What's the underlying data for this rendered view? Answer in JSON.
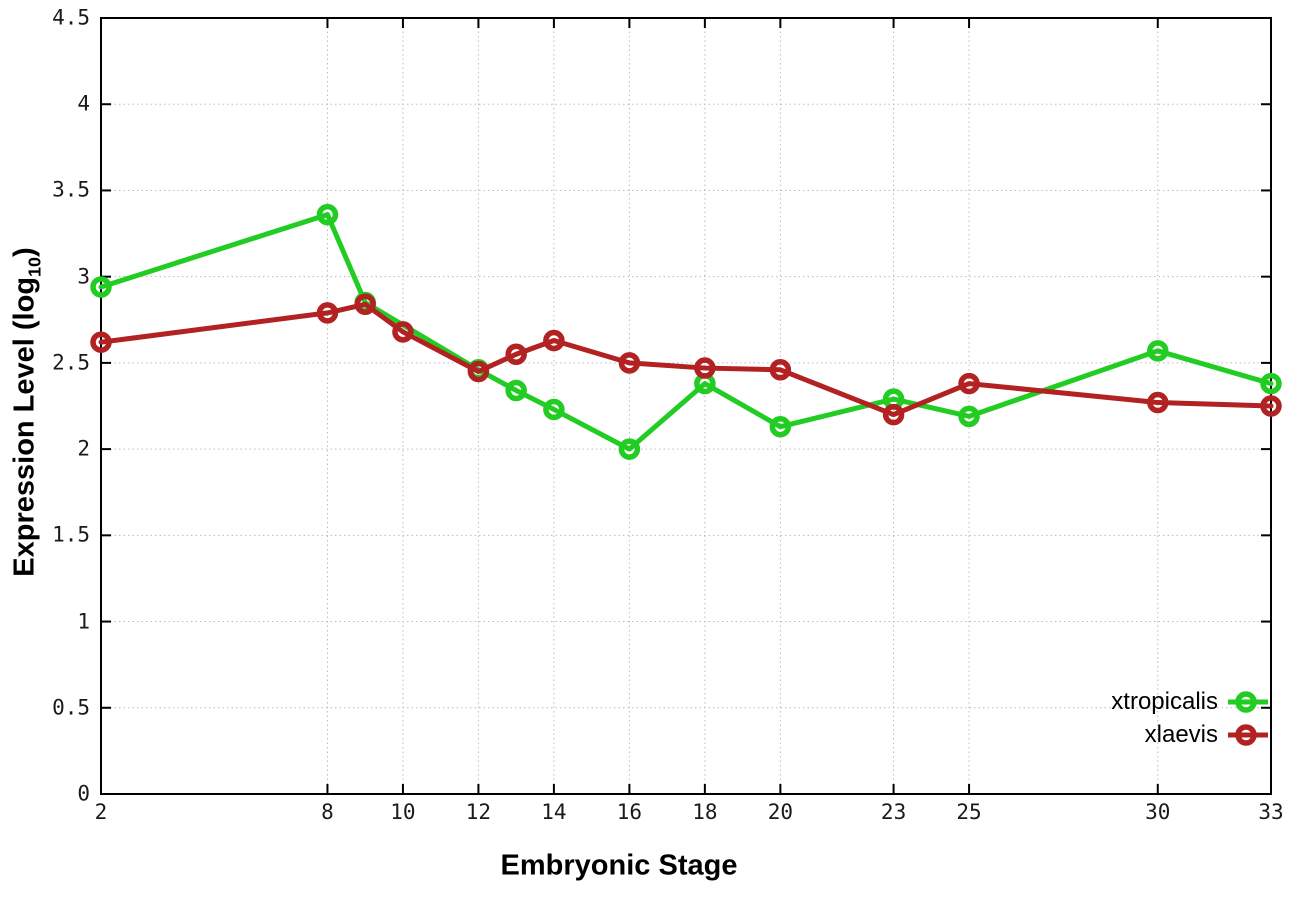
{
  "chart_data": {
    "type": "line",
    "title": "",
    "xlabel": "Embryonic Stage",
    "ylabel": {
      "prefix": "Expression Level (log",
      "subscript": "10",
      "suffix": ")"
    },
    "xlim": [
      2,
      33
    ],
    "ylim": [
      0,
      4.5
    ],
    "xticks": [
      2,
      8,
      10,
      12,
      14,
      16,
      18,
      20,
      23,
      25,
      30,
      33
    ],
    "xtick_labels": [
      "2",
      "8",
      "10",
      "12",
      "14",
      "16",
      "18",
      "20",
      "23",
      "25",
      "30",
      "33"
    ],
    "yticks": [
      0,
      0.5,
      1,
      1.5,
      2,
      2.5,
      3,
      3.5,
      4,
      4.5
    ],
    "ytick_labels": [
      "0",
      "0.5",
      "1",
      "1.5",
      "2",
      "2.5",
      "3",
      "3.5",
      "4",
      "4.5"
    ],
    "grid": true,
    "legend_position": "bottom-right",
    "marker": "open-circle",
    "series": [
      {
        "name": "xtropicalis",
        "color": "#22cc22",
        "points": [
          [
            2,
            2.94
          ],
          [
            8,
            3.36
          ],
          [
            9,
            2.85
          ],
          [
            12,
            2.46
          ],
          [
            13,
            2.34
          ],
          [
            14,
            2.23
          ],
          [
            16,
            2.0
          ],
          [
            18,
            2.38
          ],
          [
            20,
            2.13
          ],
          [
            23,
            2.29
          ],
          [
            25,
            2.19
          ],
          [
            30,
            2.57
          ],
          [
            33,
            2.38
          ]
        ]
      },
      {
        "name": "xlaevis",
        "color": "#b22222",
        "points": [
          [
            2,
            2.62
          ],
          [
            8,
            2.79
          ],
          [
            9,
            2.84
          ],
          [
            10,
            2.68
          ],
          [
            12,
            2.45
          ],
          [
            13,
            2.55
          ],
          [
            14,
            2.63
          ],
          [
            16,
            2.5
          ],
          [
            18,
            2.47
          ],
          [
            20,
            2.46
          ],
          [
            23,
            2.2
          ],
          [
            25,
            2.38
          ],
          [
            30,
            2.27
          ],
          [
            33,
            2.25
          ]
        ]
      }
    ]
  }
}
